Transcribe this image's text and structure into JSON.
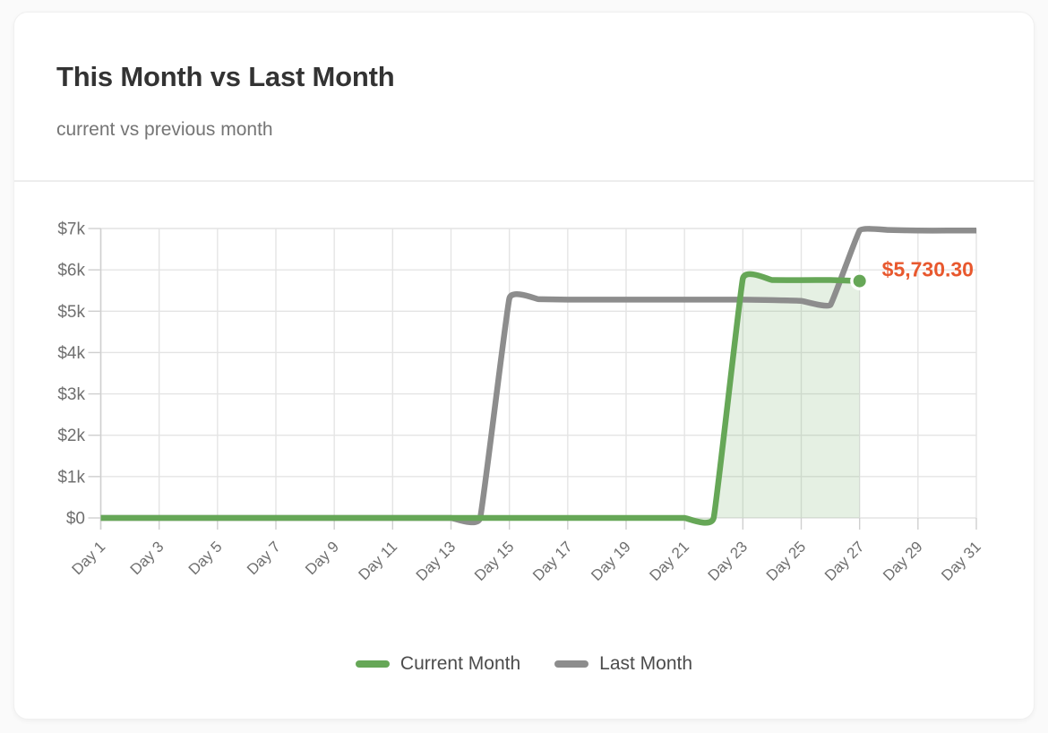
{
  "card": {
    "title": "This Month vs Last Month",
    "subtitle": "current vs previous month"
  },
  "chart_data": {
    "type": "line",
    "title": "This Month vs Last Month",
    "subtitle": "current vs previous month",
    "xlabel": "",
    "ylabel": "",
    "x_unit": "day of month",
    "x_range": [
      1,
      31
    ],
    "ylim": [
      0,
      7000
    ],
    "grid": true,
    "legend_position": "bottom",
    "y_tick_values": [
      0,
      1000,
      2000,
      3000,
      4000,
      5000,
      6000,
      7000
    ],
    "y_tick_labels": [
      "$0",
      "$1k",
      "$2k",
      "$3k",
      "$4k",
      "$5k",
      "$6k",
      "$7k"
    ],
    "x_tick_days": [
      1,
      3,
      5,
      7,
      9,
      11,
      13,
      15,
      17,
      19,
      21,
      23,
      25,
      27,
      29,
      31
    ],
    "x_tick_labels": [
      "Day 1",
      "Day 3",
      "Day 5",
      "Day 7",
      "Day 9",
      "Day 11",
      "Day 13",
      "Day 15",
      "Day 17",
      "Day 19",
      "Day 21",
      "Day 23",
      "Day 25",
      "Day 27",
      "Day 29",
      "Day 31"
    ],
    "series": [
      {
        "name": "Current Month",
        "color": "#66a757",
        "fill_color": "rgba(102,167,87,0.17)",
        "start_day": 1,
        "values": [
          0,
          0,
          0,
          0,
          0,
          0,
          0,
          0,
          0,
          0,
          0,
          0,
          0,
          0,
          0,
          0,
          0,
          0,
          0,
          0,
          0,
          0,
          5790,
          5755,
          5750,
          5755,
          5730.3
        ]
      },
      {
        "name": "Last Month",
        "color": "#8d8d8d",
        "fill_color": null,
        "start_day": 1,
        "values": [
          0,
          0,
          0,
          0,
          0,
          0,
          0,
          0,
          0,
          0,
          0,
          0,
          0,
          0,
          5310,
          5290,
          5280,
          5280,
          5280,
          5280,
          5280,
          5280,
          5280,
          5270,
          5250,
          5150,
          6950,
          6965,
          6950,
          6950,
          6950
        ]
      }
    ],
    "annotation": {
      "text": "$5,730.30",
      "day": 27,
      "value": 5730.3,
      "series": "Current Month",
      "color": "#e8582e"
    }
  },
  "colors": {
    "page_bg": "#fafafa",
    "card_bg": "#ffffff",
    "grid": "#e4e4e4",
    "axis": "#cfcfcf",
    "tick_text": "#6f6f6f",
    "title_text": "#333333",
    "subtitle_text": "#757575",
    "legend_text": "#4c4c4c",
    "divider": "#ededed"
  }
}
